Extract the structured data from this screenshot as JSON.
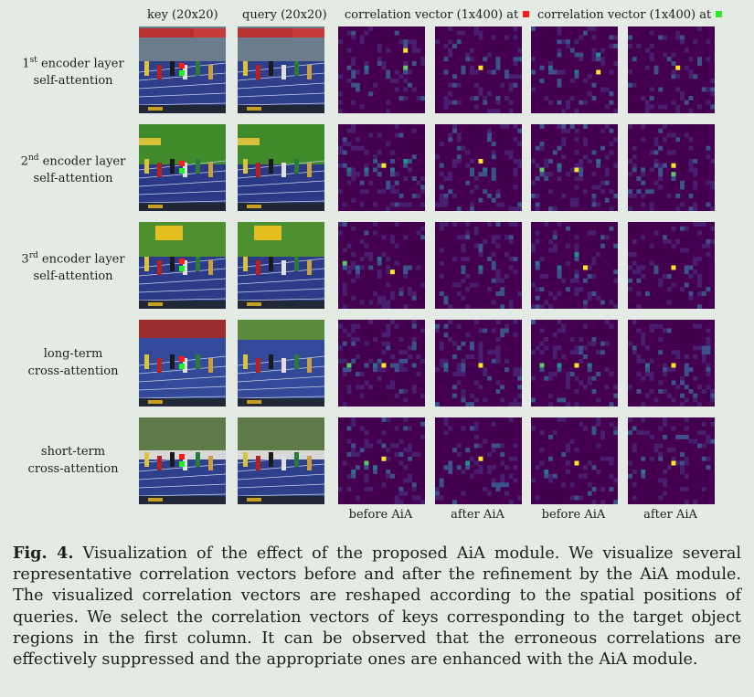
{
  "figure": {
    "column_headers": [
      {
        "text": "key (20x20)"
      },
      {
        "text": "query (20x20)"
      },
      {
        "text": "correlation vector (1x400) at",
        "marker_color": "#ff1a1a"
      },
      {
        "text": "correlation vector (1x400) at",
        "marker_color": "#22ee22"
      }
    ],
    "rows": [
      {
        "label_prefix": "1",
        "label_sup": "st",
        "label_line1_rest": " encoder layer",
        "label_line2": "self-attention"
      },
      {
        "label_prefix": "2",
        "label_sup": "nd",
        "label_line1_rest": " encoder layer",
        "label_line2": "self-attention"
      },
      {
        "label_prefix": "3",
        "label_sup": "rd",
        "label_line1_rest": " encoder layer",
        "label_line2": "self-attention"
      },
      {
        "label_prefix": "",
        "label_sup": "",
        "label_line1_rest": "long-term",
        "label_line2": "cross-attention"
      },
      {
        "label_prefix": "",
        "label_sup": "",
        "label_line1_rest": "short-term",
        "label_line2": "cross-attention"
      }
    ],
    "footer_labels": [
      "before AiA",
      "after AiA",
      "before AiA",
      "after AiA"
    ],
    "colors": {
      "heatmap_bg": "#44004f",
      "heatmap_peak": "#fde725",
      "heatmap_mid": "#21918c"
    }
  },
  "caption": {
    "label": "Fig. 4.",
    "text": " Visualization of the effect of the proposed AiA module. We visualize several representative correlation vectors before and after the refinement by the AiA module. The visualized correlation vectors are reshaped according to the spatial positions of queries. We select the correlation vectors of keys corresponding to the target object regions in the first column. It can be observed that the erroneous correlations are effectively suppressed and the appropriate ones are enhanced with the AiA module."
  }
}
